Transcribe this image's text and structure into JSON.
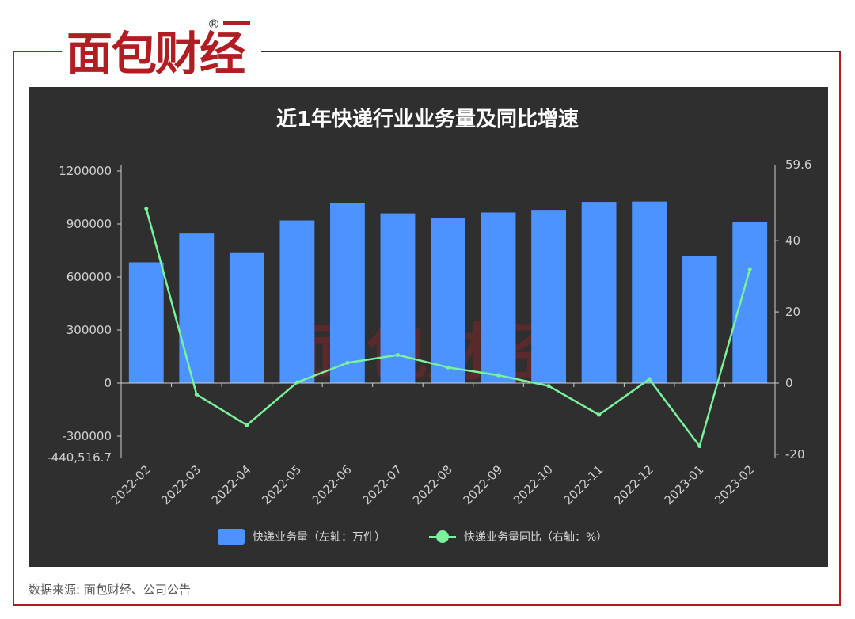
{
  "brand": {
    "logo_text": "面包财经",
    "registered_mark": "®",
    "watermark_text": "面包财经"
  },
  "source": "数据来源: 面包财经、公司公告",
  "colors": {
    "panel": "#2f2f2f",
    "bar": "#4c93ff",
    "line": "#7af29c",
    "frame": "#b01e23"
  },
  "chart_data": {
    "type": "bar+line",
    "title": "近1年快递行业业务量及同比增速",
    "categories": [
      "2022-02",
      "2022-03",
      "2022-04",
      "2022-05",
      "2022-06",
      "2022-07",
      "2022-08",
      "2022-09",
      "2022-10",
      "2022-11",
      "2022-12",
      "2023-01",
      "2023-02"
    ],
    "series": [
      {
        "name": "快递业务量（左轴：万件）",
        "type": "bar",
        "axis": "left",
        "values": [
          683000,
          850000,
          740000,
          920000,
          1020000,
          960000,
          935000,
          965000,
          980000,
          1025000,
          1027000,
          717000,
          910000
        ]
      },
      {
        "name": "快递业务量同比（右轴：%）",
        "type": "line",
        "axis": "right",
        "values": [
          49.0,
          -3.2,
          -11.8,
          0.2,
          5.7,
          7.9,
          4.4,
          2.2,
          -0.8,
          -8.9,
          1.1,
          -17.7,
          32.0
        ]
      }
    ],
    "left_axis": {
      "ylim": [
        -440516.7,
        1200000
      ],
      "ticks": [
        1200000,
        900000,
        600000,
        300000,
        0,
        -300000
      ],
      "tick_labels": [
        "1200000",
        "900000",
        "600000",
        "300000",
        "0",
        "-300000"
      ],
      "min_label": "-440,516.7"
    },
    "right_axis": {
      "ylim": [
        -20,
        59.6
      ],
      "ticks": [
        40,
        20,
        0,
        -20
      ],
      "tick_labels": [
        "40",
        "20",
        "0",
        "-20"
      ],
      "max_label": "59.6"
    },
    "grid": false,
    "legend_position": "bottom"
  }
}
